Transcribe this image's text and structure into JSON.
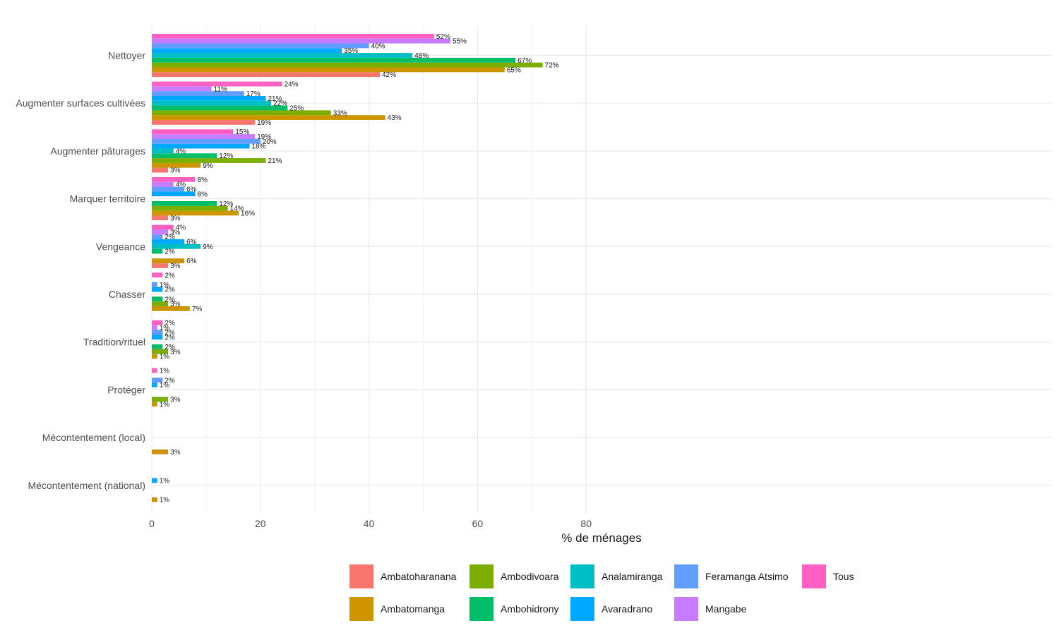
{
  "chart_data": {
    "type": "bar",
    "orientation": "horizontal",
    "xlabel": "% de ménages",
    "ylabel": "",
    "xlim": [
      0,
      82
    ],
    "x_ticks": [
      0,
      20,
      40,
      60,
      80
    ],
    "grid": true,
    "legend_position": "bottom",
    "categories": [
      "Nettoyer",
      "Augmenter surfaces cultivées",
      "Augmenter pâturages",
      "Marquer territoire",
      "Vengeance",
      "Chasser",
      "Tradition/rituel",
      "Protéger",
      "Mécontentement (local)",
      "Mécontentement (national)"
    ],
    "series": [
      {
        "name": "Ambatoharanana",
        "color": "#F8766D",
        "values": [
          42,
          19,
          3,
          3,
          3,
          null,
          null,
          null,
          null,
          null
        ]
      },
      {
        "name": "Ambatomanga",
        "color": "#CD9600",
        "values": [
          65,
          43,
          9,
          16,
          6,
          7,
          1,
          1,
          3,
          1
        ]
      },
      {
        "name": "Ambodivoara",
        "color": "#7CAE00",
        "values": [
          72,
          33,
          21,
          14,
          null,
          3,
          3,
          3,
          null,
          null
        ]
      },
      {
        "name": "Ambohidrony",
        "color": "#00BE67",
        "values": [
          67,
          25,
          12,
          12,
          2,
          2,
          2,
          null,
          null,
          null
        ]
      },
      {
        "name": "Analamiranga",
        "color": "#00BFC4",
        "values": [
          48,
          22,
          4,
          null,
          9,
          null,
          null,
          null,
          null,
          null
        ]
      },
      {
        "name": "Avaradrano",
        "color": "#00A9FF",
        "values": [
          35,
          21,
          18,
          8,
          6,
          2,
          2,
          1,
          null,
          1
        ]
      },
      {
        "name": "Feramanga Atsimo",
        "color": "#619CFF",
        "values": [
          40,
          17,
          20,
          6,
          2,
          1,
          2,
          2,
          null,
          null
        ]
      },
      {
        "name": "Mangabe",
        "color": "#C77CFF",
        "values": [
          55,
          11,
          19,
          4,
          3,
          null,
          1,
          null,
          null,
          null
        ]
      },
      {
        "name": "Tous",
        "color": "#FF61C3",
        "values": [
          52,
          24,
          15,
          8,
          4,
          2,
          2,
          1,
          null,
          null
        ]
      }
    ],
    "legend": {
      "row1": [
        "Ambatoharanana",
        "Ambodivoara",
        "Analamiranga",
        "Feramanga Atsimo",
        "Tous"
      ],
      "row2": [
        "Ambatomanga",
        "Ambohidrony",
        "Avaradrano",
        "Mangabe"
      ]
    }
  }
}
